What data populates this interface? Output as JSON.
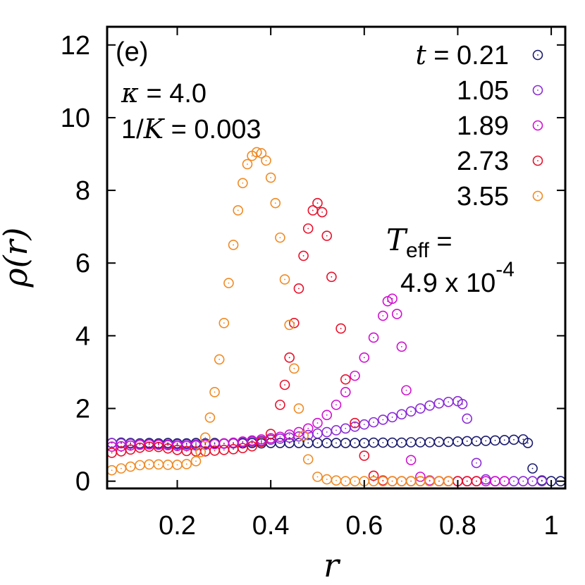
{
  "chart_data": {
    "type": "scatter",
    "panel_label": "(e)",
    "xlabel": "r",
    "ylabel": "ρ(r)",
    "xlim": [
      0.05,
      1.03
    ],
    "ylim": [
      -0.2,
      12.5
    ],
    "x_ticks": [
      0.2,
      0.4,
      0.6,
      0.8,
      1
    ],
    "x_tick_labels": [
      "0.2",
      "0.4",
      "0.6",
      "0.8",
      "1"
    ],
    "y_ticks": [
      0,
      2,
      4,
      6,
      8,
      10,
      12
    ],
    "y_tick_labels": [
      "0",
      "2",
      "4",
      "6",
      "8",
      "10",
      "12"
    ],
    "grid": false,
    "legend_position": "top-right",
    "annotations": {
      "kappa_symbol": "κ",
      "kappa_value": " = 4.0",
      "K_prefix": "1/",
      "K_symbol": "K",
      "K_value": " = 0.003",
      "teff_symbol": "T",
      "teff_sub": "eff",
      "teff_eq": " =",
      "teff_value": "4.9 x 10",
      "teff_exp": "-4"
    },
    "legend_prefix_symbol": "t",
    "legend_prefix_eq": " = ",
    "series": [
      {
        "name": "0.21",
        "color": "#1a1a6e",
        "points": [
          [
            0.06,
            1.05
          ],
          [
            0.08,
            1.06
          ],
          [
            0.1,
            1.05
          ],
          [
            0.12,
            1.04
          ],
          [
            0.14,
            1.05
          ],
          [
            0.16,
            1.04
          ],
          [
            0.18,
            1.05
          ],
          [
            0.2,
            1.04
          ],
          [
            0.22,
            1.04
          ],
          [
            0.24,
            1.05
          ],
          [
            0.26,
            1.04
          ],
          [
            0.28,
            1.05
          ],
          [
            0.3,
            1.04
          ],
          [
            0.32,
            1.04
          ],
          [
            0.34,
            1.04
          ],
          [
            0.36,
            1.05
          ],
          [
            0.38,
            1.04
          ],
          [
            0.4,
            1.05
          ],
          [
            0.42,
            1.05
          ],
          [
            0.44,
            1.05
          ],
          [
            0.46,
            1.05
          ],
          [
            0.48,
            1.05
          ],
          [
            0.5,
            1.05
          ],
          [
            0.52,
            1.05
          ],
          [
            0.54,
            1.05
          ],
          [
            0.56,
            1.05
          ],
          [
            0.58,
            1.05
          ],
          [
            0.6,
            1.05
          ],
          [
            0.62,
            1.06
          ],
          [
            0.64,
            1.06
          ],
          [
            0.66,
            1.06
          ],
          [
            0.68,
            1.06
          ],
          [
            0.7,
            1.07
          ],
          [
            0.72,
            1.07
          ],
          [
            0.74,
            1.07
          ],
          [
            0.76,
            1.08
          ],
          [
            0.78,
            1.08
          ],
          [
            0.8,
            1.09
          ],
          [
            0.82,
            1.1
          ],
          [
            0.84,
            1.1
          ],
          [
            0.86,
            1.11
          ],
          [
            0.88,
            1.12
          ],
          [
            0.9,
            1.13
          ],
          [
            0.92,
            1.14
          ],
          [
            0.94,
            1.15
          ],
          [
            0.95,
            1.05
          ],
          [
            0.96,
            0.35
          ],
          [
            0.98,
            0.02
          ],
          [
            1.0,
            0.0
          ],
          [
            1.02,
            0.0
          ]
        ]
      },
      {
        "name": "1.05",
        "color": "#8a2bd6",
        "points": [
          [
            0.06,
            1.05
          ],
          [
            0.08,
            1.04
          ],
          [
            0.1,
            1.03
          ],
          [
            0.12,
            1.02
          ],
          [
            0.14,
            1.02
          ],
          [
            0.16,
            1.01
          ],
          [
            0.18,
            1.01
          ],
          [
            0.2,
            1.01
          ],
          [
            0.22,
            1.01
          ],
          [
            0.24,
            1.01
          ],
          [
            0.26,
            1.02
          ],
          [
            0.28,
            1.02
          ],
          [
            0.3,
            1.03
          ],
          [
            0.32,
            1.05
          ],
          [
            0.34,
            1.07
          ],
          [
            0.36,
            1.09
          ],
          [
            0.38,
            1.11
          ],
          [
            0.4,
            1.14
          ],
          [
            0.42,
            1.17
          ],
          [
            0.44,
            1.2
          ],
          [
            0.46,
            1.23
          ],
          [
            0.48,
            1.27
          ],
          [
            0.5,
            1.31
          ],
          [
            0.52,
            1.35
          ],
          [
            0.54,
            1.4
          ],
          [
            0.56,
            1.45
          ],
          [
            0.58,
            1.5
          ],
          [
            0.6,
            1.56
          ],
          [
            0.62,
            1.62
          ],
          [
            0.64,
            1.69
          ],
          [
            0.66,
            1.76
          ],
          [
            0.68,
            1.84
          ],
          [
            0.7,
            1.92
          ],
          [
            0.72,
            2.0
          ],
          [
            0.74,
            2.08
          ],
          [
            0.76,
            2.14
          ],
          [
            0.78,
            2.18
          ],
          [
            0.8,
            2.2
          ],
          [
            0.81,
            2.12
          ],
          [
            0.82,
            1.72
          ],
          [
            0.84,
            0.5
          ],
          [
            0.86,
            0.05
          ],
          [
            0.88,
            0.0
          ],
          [
            0.9,
            0.0
          ],
          [
            0.92,
            0.0
          ],
          [
            0.94,
            0.0
          ],
          [
            0.96,
            0.0
          ],
          [
            0.98,
            0.0
          ]
        ]
      },
      {
        "name": "1.89",
        "color": "#d010d0",
        "points": [
          [
            0.06,
            0.95
          ],
          [
            0.08,
            0.96
          ],
          [
            0.1,
            0.98
          ],
          [
            0.12,
            1.0
          ],
          [
            0.14,
            1.01
          ],
          [
            0.16,
            1.0
          ],
          [
            0.18,
            0.99
          ],
          [
            0.2,
            0.97
          ],
          [
            0.22,
            0.97
          ],
          [
            0.24,
            0.98
          ],
          [
            0.26,
            1.0
          ],
          [
            0.28,
            1.02
          ],
          [
            0.3,
            1.04
          ],
          [
            0.32,
            1.06
          ],
          [
            0.34,
            1.09
          ],
          [
            0.36,
            1.12
          ],
          [
            0.38,
            1.15
          ],
          [
            0.4,
            1.18
          ],
          [
            0.42,
            1.22
          ],
          [
            0.44,
            1.28
          ],
          [
            0.46,
            1.35
          ],
          [
            0.48,
            1.45
          ],
          [
            0.5,
            1.6
          ],
          [
            0.52,
            1.82
          ],
          [
            0.54,
            2.1
          ],
          [
            0.56,
            2.45
          ],
          [
            0.58,
            2.9
          ],
          [
            0.6,
            3.4
          ],
          [
            0.62,
            3.95
          ],
          [
            0.64,
            4.55
          ],
          [
            0.65,
            4.95
          ],
          [
            0.66,
            5.02
          ],
          [
            0.67,
            4.6
          ],
          [
            0.68,
            3.7
          ],
          [
            0.69,
            2.5
          ],
          [
            0.7,
            0.58
          ],
          [
            0.72,
            0.12
          ],
          [
            0.74,
            0.02
          ],
          [
            0.76,
            0.0
          ],
          [
            0.78,
            0.0
          ],
          [
            0.8,
            0.0
          ],
          [
            0.82,
            0.0
          ],
          [
            0.84,
            0.0
          ],
          [
            0.86,
            0.0
          ],
          [
            0.88,
            0.0
          ],
          [
            0.9,
            0.0
          ]
        ]
      },
      {
        "name": "2.73",
        "color": "#e8102a",
        "points": [
          [
            0.06,
            0.78
          ],
          [
            0.08,
            0.82
          ],
          [
            0.1,
            0.87
          ],
          [
            0.12,
            0.92
          ],
          [
            0.14,
            0.95
          ],
          [
            0.16,
            0.94
          ],
          [
            0.18,
            0.9
          ],
          [
            0.2,
            0.86
          ],
          [
            0.22,
            0.83
          ],
          [
            0.24,
            0.82
          ],
          [
            0.26,
            0.82
          ],
          [
            0.28,
            0.84
          ],
          [
            0.3,
            0.86
          ],
          [
            0.32,
            0.88
          ],
          [
            0.34,
            0.91
          ],
          [
            0.36,
            0.96
          ],
          [
            0.38,
            1.08
          ],
          [
            0.4,
            1.3
          ],
          [
            0.42,
            2.1
          ],
          [
            0.43,
            2.65
          ],
          [
            0.44,
            3.4
          ],
          [
            0.45,
            4.35
          ],
          [
            0.46,
            5.3
          ],
          [
            0.47,
            6.2
          ],
          [
            0.48,
            6.95
          ],
          [
            0.49,
            7.45
          ],
          [
            0.5,
            7.65
          ],
          [
            0.51,
            7.4
          ],
          [
            0.52,
            6.75
          ],
          [
            0.53,
            5.62
          ],
          [
            0.55,
            4.2
          ],
          [
            0.56,
            2.8
          ],
          [
            0.58,
            1.6
          ],
          [
            0.6,
            0.7
          ],
          [
            0.62,
            0.15
          ],
          [
            0.64,
            0.02
          ],
          [
            0.66,
            0.0
          ],
          [
            0.68,
            0.0
          ],
          [
            0.7,
            0.0
          ],
          [
            0.72,
            0.0
          ],
          [
            0.74,
            0.0
          ],
          [
            0.76,
            0.0
          ],
          [
            0.78,
            0.0
          ],
          [
            0.8,
            0.0
          ],
          [
            0.82,
            0.0
          ],
          [
            0.84,
            0.0
          ]
        ]
      },
      {
        "name": "3.55",
        "color": "#f08a24",
        "points": [
          [
            0.06,
            0.3
          ],
          [
            0.08,
            0.35
          ],
          [
            0.1,
            0.4
          ],
          [
            0.12,
            0.44
          ],
          [
            0.14,
            0.46
          ],
          [
            0.16,
            0.46
          ],
          [
            0.18,
            0.45
          ],
          [
            0.2,
            0.45
          ],
          [
            0.22,
            0.47
          ],
          [
            0.24,
            0.55
          ],
          [
            0.25,
            0.8
          ],
          [
            0.26,
            1.2
          ],
          [
            0.27,
            1.75
          ],
          [
            0.28,
            2.45
          ],
          [
            0.29,
            3.35
          ],
          [
            0.3,
            4.35
          ],
          [
            0.31,
            5.45
          ],
          [
            0.32,
            6.5
          ],
          [
            0.33,
            7.45
          ],
          [
            0.34,
            8.2
          ],
          [
            0.35,
            8.72
          ],
          [
            0.36,
            8.95
          ],
          [
            0.37,
            9.05
          ],
          [
            0.38,
            9.02
          ],
          [
            0.39,
            8.82
          ],
          [
            0.4,
            8.35
          ],
          [
            0.41,
            7.65
          ],
          [
            0.42,
            6.7
          ],
          [
            0.43,
            5.55
          ],
          [
            0.44,
            4.3
          ],
          [
            0.45,
            3.1
          ],
          [
            0.46,
            2.0
          ],
          [
            0.47,
            1.25
          ],
          [
            0.48,
            0.6
          ],
          [
            0.5,
            0.12
          ],
          [
            0.52,
            0.05
          ],
          [
            0.54,
            0.02
          ],
          [
            0.56,
            0.0
          ],
          [
            0.58,
            0.0
          ],
          [
            0.6,
            0.0
          ],
          [
            0.62,
            0.0
          ],
          [
            0.64,
            0.0
          ],
          [
            0.66,
            0.0
          ],
          [
            0.68,
            0.0
          ],
          [
            0.7,
            0.0
          ],
          [
            0.72,
            0.0
          ],
          [
            0.74,
            0.0
          ],
          [
            0.76,
            0.0
          ],
          [
            0.78,
            0.0
          ]
        ]
      }
    ]
  }
}
